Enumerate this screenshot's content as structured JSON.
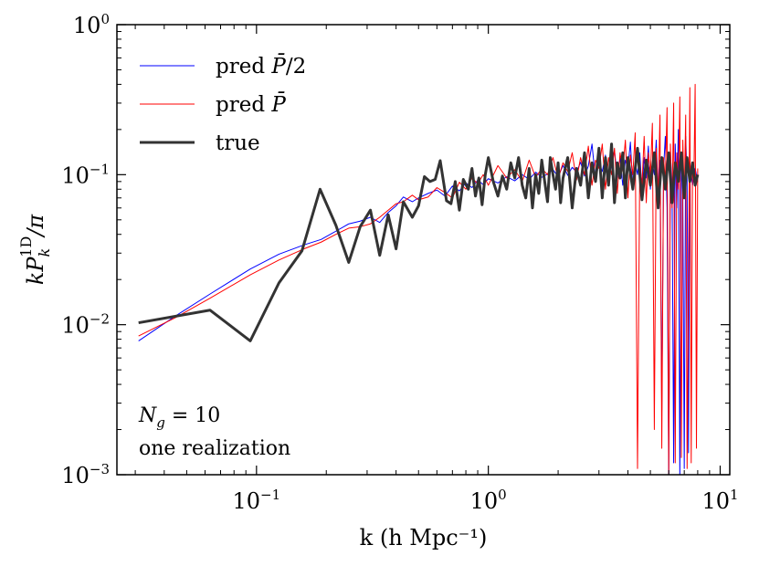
{
  "chart_data": {
    "type": "line",
    "x_scale": "log",
    "y_scale": "log",
    "xlim": [
      0.025,
      11
    ],
    "ylim": [
      0.001,
      1
    ],
    "xlabel": "k (h Mpc⁻¹)",
    "ylabel": "kP_k^{1D}/π",
    "x_ticks": [
      {
        "value": 0.1,
        "base": "10",
        "exp": "−1"
      },
      {
        "value": 1,
        "base": "10",
        "exp": "0"
      },
      {
        "value": 10,
        "base": "10",
        "exp": "1"
      }
    ],
    "y_ticks": [
      {
        "value": 0.001,
        "base": "10",
        "exp": "−3"
      },
      {
        "value": 0.01,
        "base": "10",
        "exp": "−2"
      },
      {
        "value": 0.1,
        "base": "10",
        "exp": "−1"
      },
      {
        "value": 1,
        "base": "10",
        "exp": "0"
      }
    ],
    "legend_position": "top-left",
    "legend": [
      {
        "label_main": "pred ",
        "label_sym": "P̄",
        "label_suffix": "/2",
        "color": "#0000ff",
        "width": 1
      },
      {
        "label_main": "pred ",
        "label_sym": "P̄",
        "label_suffix": "",
        "color": "#ff0000",
        "width": 1
      },
      {
        "label_main": "true",
        "label_sym": "",
        "label_suffix": "",
        "color": "#333333",
        "width": 3
      }
    ],
    "annotations": [
      "N_g = 10",
      "one realization"
    ],
    "annotation_parts": {
      "ng_symbol": "N",
      "ng_sub": "g",
      "ng_rest": " = 10",
      "realization": "one realization"
    },
    "series": [
      {
        "name": "pred P̄/2",
        "color": "#0000ff",
        "width": 1,
        "points": [
          [
            0.031,
            0.0078
          ],
          [
            0.045,
            0.0115
          ],
          [
            0.063,
            0.016
          ],
          [
            0.094,
            0.0235
          ],
          [
            0.125,
            0.0295
          ],
          [
            0.16,
            0.034
          ],
          [
            0.19,
            0.037
          ],
          [
            0.22,
            0.042
          ],
          [
            0.25,
            0.047
          ],
          [
            0.28,
            0.049
          ],
          [
            0.31,
            0.052
          ],
          [
            0.34,
            0.048
          ],
          [
            0.37,
            0.056
          ],
          [
            0.4,
            0.062
          ],
          [
            0.43,
            0.071
          ],
          [
            0.47,
            0.066
          ],
          [
            0.5,
            0.07
          ],
          [
            0.55,
            0.075
          ],
          [
            0.6,
            0.079
          ],
          [
            0.65,
            0.072
          ],
          [
            0.7,
            0.084
          ],
          [
            0.75,
            0.078
          ],
          [
            0.8,
            0.088
          ],
          [
            0.85,
            0.082
          ],
          [
            0.9,
            0.092
          ],
          [
            0.95,
            0.086
          ],
          [
            1.0,
            0.094
          ],
          [
            1.1,
            0.088
          ],
          [
            1.2,
            0.097
          ],
          [
            1.3,
            0.091
          ],
          [
            1.4,
            0.1
          ],
          [
            1.5,
            0.093
          ],
          [
            1.6,
            0.104
          ],
          [
            1.7,
            0.096
          ],
          [
            1.8,
            0.101
          ],
          [
            1.9,
            0.108
          ],
          [
            2.0,
            0.097
          ],
          [
            2.1,
            0.115
          ],
          [
            2.2,
            0.099
          ],
          [
            2.3,
            0.112
          ],
          [
            2.4,
            0.104
          ],
          [
            2.5,
            0.121
          ],
          [
            2.6,
            0.098
          ],
          [
            2.7,
            0.114
          ],
          [
            2.8,
            0.16
          ],
          [
            2.9,
            0.092
          ],
          [
            3.0,
            0.12
          ],
          [
            3.1,
            0.105
          ],
          [
            3.2,
            0.135
          ],
          [
            3.3,
            0.089
          ],
          [
            3.4,
            0.118
          ],
          [
            3.5,
            0.145
          ],
          [
            3.6,
            0.096
          ],
          [
            3.7,
            0.13
          ],
          [
            3.8,
            0.085
          ],
          [
            3.9,
            0.125
          ],
          [
            4.0,
            0.11
          ],
          [
            4.1,
            0.165
          ],
          [
            4.2,
            0.082
          ],
          [
            4.3,
            0.12
          ],
          [
            4.4,
            0.1
          ],
          [
            4.5,
            0.14
          ],
          [
            4.6,
            0.078
          ],
          [
            4.7,
            0.13
          ],
          [
            4.8,
            0.095
          ],
          [
            4.9,
            0.155
          ],
          [
            5.0,
            0.08
          ],
          [
            5.1,
            0.12
          ],
          [
            5.2,
            0.1
          ],
          [
            5.3,
            0.17
          ],
          [
            5.4,
            0.075
          ],
          [
            5.5,
            0.125
          ],
          [
            5.6,
            0.0027
          ],
          [
            5.7,
            0.11
          ],
          [
            5.8,
            0.18
          ],
          [
            5.9,
            0.06
          ],
          [
            6.0,
            0.0009
          ],
          [
            6.1,
            0.14
          ],
          [
            6.2,
            0.085
          ],
          [
            6.3,
            0.0012
          ],
          [
            6.4,
            0.16
          ],
          [
            6.5,
            0.06
          ],
          [
            6.6,
            0.2
          ],
          [
            6.7,
            0.0009
          ],
          [
            6.8,
            0.13
          ],
          [
            6.9,
            0.07
          ],
          [
            7.0,
            0.0011
          ],
          [
            7.1,
            0.18
          ],
          [
            7.2,
            0.09
          ],
          [
            7.3,
            0.0014
          ],
          [
            7.4,
            0.12
          ],
          [
            7.6,
            0.085
          ],
          [
            7.8,
            0.11
          ],
          [
            8.0,
            0.09
          ]
        ]
      },
      {
        "name": "pred P̄",
        "color": "#ff0000",
        "width": 1,
        "points": [
          [
            0.031,
            0.0084
          ],
          [
            0.045,
            0.0112
          ],
          [
            0.063,
            0.015
          ],
          [
            0.094,
            0.0215
          ],
          [
            0.125,
            0.027
          ],
          [
            0.16,
            0.032
          ],
          [
            0.19,
            0.0355
          ],
          [
            0.22,
            0.04
          ],
          [
            0.25,
            0.044
          ],
          [
            0.28,
            0.045
          ],
          [
            0.31,
            0.047
          ],
          [
            0.34,
            0.052
          ],
          [
            0.37,
            0.058
          ],
          [
            0.4,
            0.064
          ],
          [
            0.43,
            0.066
          ],
          [
            0.47,
            0.073
          ],
          [
            0.5,
            0.068
          ],
          [
            0.55,
            0.071
          ],
          [
            0.6,
            0.082
          ],
          [
            0.65,
            0.076
          ],
          [
            0.7,
            0.07
          ],
          [
            0.75,
            0.089
          ],
          [
            0.8,
            0.08
          ],
          [
            0.85,
            0.095
          ],
          [
            0.9,
            0.087
          ],
          [
            0.95,
            0.1
          ],
          [
            1.0,
            0.085
          ],
          [
            1.1,
            0.115
          ],
          [
            1.2,
            0.095
          ],
          [
            1.3,
            0.108
          ],
          [
            1.4,
            0.09
          ],
          [
            1.5,
            0.125
          ],
          [
            1.6,
            0.096
          ],
          [
            1.7,
            0.11
          ],
          [
            1.8,
            0.1
          ],
          [
            1.9,
            0.13
          ],
          [
            2.0,
            0.094
          ],
          [
            2.1,
            0.12
          ],
          [
            2.2,
            0.105
          ],
          [
            2.3,
            0.14
          ],
          [
            2.4,
            0.092
          ],
          [
            2.5,
            0.13
          ],
          [
            2.6,
            0.1
          ],
          [
            2.7,
            0.155
          ],
          [
            2.8,
            0.085
          ],
          [
            2.9,
            0.125
          ],
          [
            3.0,
            0.11
          ],
          [
            3.1,
            0.16
          ],
          [
            3.2,
            0.08
          ],
          [
            3.3,
            0.13
          ],
          [
            3.4,
            0.1
          ],
          [
            3.5,
            0.15
          ],
          [
            3.6,
            0.075
          ],
          [
            3.7,
            0.14
          ],
          [
            3.8,
            0.105
          ],
          [
            3.9,
            0.17
          ],
          [
            4.0,
            0.07
          ],
          [
            4.1,
            0.135
          ],
          [
            4.2,
            0.1
          ],
          [
            4.3,
            0.19
          ],
          [
            4.4,
            0.0011
          ],
          [
            4.5,
            0.12
          ],
          [
            4.6,
            0.085
          ],
          [
            4.7,
            0.18
          ],
          [
            4.8,
            0.065
          ],
          [
            4.9,
            0.14
          ],
          [
            5.0,
            0.1
          ],
          [
            5.1,
            0.22
          ],
          [
            5.2,
            0.002
          ],
          [
            5.3,
            0.15
          ],
          [
            5.4,
            0.07
          ],
          [
            5.5,
            0.25
          ],
          [
            5.6,
            0.0015
          ],
          [
            5.7,
            0.13
          ],
          [
            5.8,
            0.09
          ],
          [
            5.9,
            0.28
          ],
          [
            6.0,
            0.001
          ],
          [
            6.1,
            0.16
          ],
          [
            6.2,
            0.06
          ],
          [
            6.3,
            0.3
          ],
          [
            6.4,
            0.0012
          ],
          [
            6.5,
            0.14
          ],
          [
            6.6,
            0.08
          ],
          [
            6.7,
            0.33
          ],
          [
            6.8,
            0.0013
          ],
          [
            6.9,
            0.17
          ],
          [
            7.0,
            0.07
          ],
          [
            7.1,
            0.25
          ],
          [
            7.2,
            0.0011
          ],
          [
            7.4,
            0.38
          ],
          [
            7.5,
            0.0012
          ],
          [
            7.6,
            0.12
          ],
          [
            7.7,
            0.09
          ],
          [
            7.8,
            0.4
          ],
          [
            7.9,
            0.0015
          ],
          [
            8.0,
            0.11
          ]
        ]
      },
      {
        "name": "true",
        "color": "#333333",
        "width": 3,
        "points": [
          [
            0.031,
            0.0103
          ],
          [
            0.063,
            0.0125
          ],
          [
            0.094,
            0.0078
          ],
          [
            0.125,
            0.019
          ],
          [
            0.157,
            0.031
          ],
          [
            0.188,
            0.08
          ],
          [
            0.22,
            0.046
          ],
          [
            0.25,
            0.026
          ],
          [
            0.28,
            0.045
          ],
          [
            0.31,
            0.058
          ],
          [
            0.34,
            0.029
          ],
          [
            0.37,
            0.054
          ],
          [
            0.4,
            0.032
          ],
          [
            0.43,
            0.066
          ],
          [
            0.47,
            0.052
          ],
          [
            0.5,
            0.062
          ],
          [
            0.53,
            0.097
          ],
          [
            0.56,
            0.09
          ],
          [
            0.59,
            0.093
          ],
          [
            0.62,
            0.124
          ],
          [
            0.66,
            0.067
          ],
          [
            0.69,
            0.064
          ],
          [
            0.72,
            0.09
          ],
          [
            0.75,
            0.058
          ],
          [
            0.78,
            0.093
          ],
          [
            0.82,
            0.08
          ],
          [
            0.85,
            0.11
          ],
          [
            0.88,
            0.072
          ],
          [
            0.91,
            0.095
          ],
          [
            0.94,
            0.063
          ],
          [
            0.97,
            0.1
          ],
          [
            1.0,
            0.13
          ],
          [
            1.05,
            0.09
          ],
          [
            1.1,
            0.072
          ],
          [
            1.15,
            0.098
          ],
          [
            1.2,
            0.08
          ],
          [
            1.25,
            0.12
          ],
          [
            1.3,
            0.095
          ],
          [
            1.35,
            0.13
          ],
          [
            1.4,
            0.085
          ],
          [
            1.45,
            0.07
          ],
          [
            1.5,
            0.11
          ],
          [
            1.55,
            0.06
          ],
          [
            1.6,
            0.1
          ],
          [
            1.65,
            0.075
          ],
          [
            1.7,
            0.125
          ],
          [
            1.75,
            0.09
          ],
          [
            1.8,
            0.066
          ],
          [
            1.85,
            0.13
          ],
          [
            1.9,
            0.1
          ],
          [
            1.95,
            0.08
          ],
          [
            2.0,
            0.12
          ],
          [
            2.05,
            0.065
          ],
          [
            2.1,
            0.095
          ],
          [
            2.2,
            0.13
          ],
          [
            2.3,
            0.06
          ],
          [
            2.4,
            0.11
          ],
          [
            2.5,
            0.085
          ],
          [
            2.6,
            0.14
          ],
          [
            2.7,
            0.07
          ],
          [
            2.8,
            0.12
          ],
          [
            2.9,
            0.09
          ],
          [
            3.0,
            0.15
          ],
          [
            3.1,
            0.07
          ],
          [
            3.2,
            0.13
          ],
          [
            3.3,
            0.085
          ],
          [
            3.4,
            0.16
          ],
          [
            3.5,
            0.065
          ],
          [
            3.6,
            0.12
          ],
          [
            3.7,
            0.095
          ],
          [
            3.8,
            0.14
          ],
          [
            3.9,
            0.07
          ],
          [
            4.0,
            0.13
          ],
          [
            4.2,
            0.08
          ],
          [
            4.4,
            0.15
          ],
          [
            4.6,
            0.068
          ],
          [
            4.8,
            0.125
          ],
          [
            5.0,
            0.085
          ],
          [
            5.2,
            0.14
          ],
          [
            5.4,
            0.06
          ],
          [
            5.6,
            0.13
          ],
          [
            5.8,
            0.08
          ],
          [
            6.0,
            0.14
          ],
          [
            6.2,
            0.065
          ],
          [
            6.4,
            0.12
          ],
          [
            6.6,
            0.09
          ],
          [
            6.8,
            0.14
          ],
          [
            7.0,
            0.07
          ],
          [
            7.2,
            0.13
          ],
          [
            7.4,
            0.09
          ],
          [
            7.6,
            0.12
          ],
          [
            7.8,
            0.085
          ],
          [
            8.0,
            0.1
          ]
        ]
      }
    ]
  }
}
